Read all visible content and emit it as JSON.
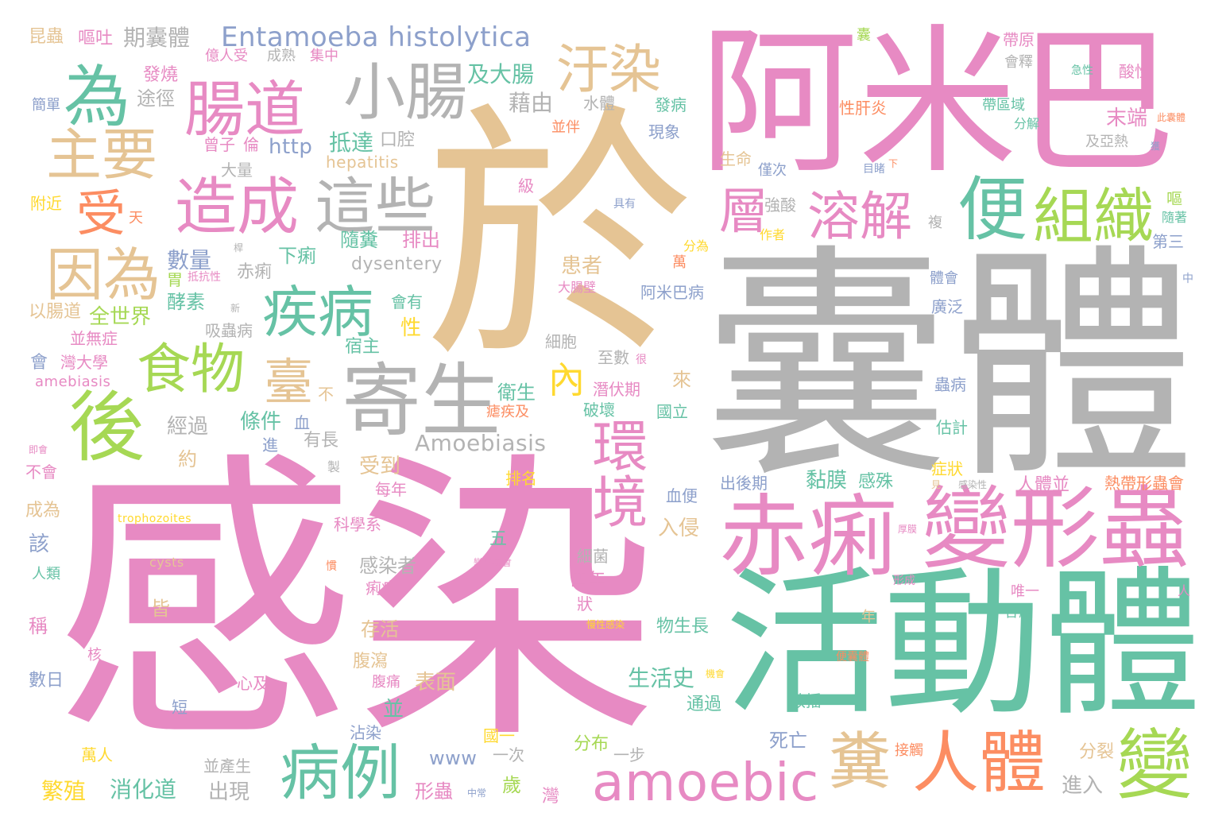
{
  "palette": {
    "pink": "#e78ac3",
    "gray": "#b3b3b3",
    "tan": "#e5c494",
    "green": "#66c2a5",
    "lime": "#a6d854",
    "orange": "#fc8d62",
    "blue": "#8da0cb",
    "yellow": "#ffd92f"
  },
  "words": [
    {
      "text": "於",
      "color": "tan"
    },
    {
      "text": "囊體",
      "color": "gray"
    },
    {
      "text": "感染",
      "color": "pink"
    },
    {
      "text": "阿米巴",
      "color": "pink"
    },
    {
      "text": "活動體",
      "color": "green"
    },
    {
      "text": "變形蟲",
      "color": "pink"
    },
    {
      "text": "赤痢",
      "color": "pink"
    },
    {
      "text": "寄生",
      "color": "gray"
    },
    {
      "text": "便",
      "color": "green"
    },
    {
      "text": "組織",
      "color": "lime"
    },
    {
      "text": "溶解",
      "color": "pink"
    },
    {
      "text": "層",
      "color": "pink"
    },
    {
      "text": "人體",
      "color": "orange"
    },
    {
      "text": "糞",
      "color": "tan"
    },
    {
      "text": "變",
      "color": "lime"
    },
    {
      "text": "amoebic",
      "color": "pink"
    },
    {
      "text": "病例",
      "color": "green"
    },
    {
      "text": "環境",
      "color": "pink"
    },
    {
      "text": "內",
      "color": "yellow"
    },
    {
      "text": "臺",
      "color": "tan"
    },
    {
      "text": "食物",
      "color": "lime"
    },
    {
      "text": "疾病",
      "color": "green"
    },
    {
      "text": "後",
      "color": "lime"
    },
    {
      "text": "因為",
      "color": "tan"
    },
    {
      "text": "受",
      "color": "orange"
    },
    {
      "text": "造成",
      "color": "pink"
    },
    {
      "text": "這些",
      "color": "gray"
    },
    {
      "text": "主要",
      "color": "tan"
    },
    {
      "text": "為",
      "color": "green"
    },
    {
      "text": "腸道",
      "color": "pink"
    },
    {
      "text": "小腸",
      "color": "gray"
    },
    {
      "text": "汙染",
      "color": "tan"
    },
    {
      "text": "Entamoeba histolytica",
      "color": "blue"
    },
    {
      "text": "期囊體",
      "color": "gray"
    },
    {
      "text": "嘔吐",
      "color": "pink"
    },
    {
      "text": "昆蟲",
      "color": "tan"
    },
    {
      "text": "億人受",
      "color": "pink"
    },
    {
      "text": "成熟",
      "color": "gray"
    },
    {
      "text": "集中",
      "color": "pink"
    },
    {
      "text": "發燒",
      "color": "pink"
    },
    {
      "text": "途徑",
      "color": "gray"
    },
    {
      "text": "簡單",
      "color": "blue"
    },
    {
      "text": "及大腸",
      "color": "green"
    },
    {
      "text": "藉由",
      "color": "gray"
    },
    {
      "text": "水體",
      "color": "gray"
    },
    {
      "text": "曾子",
      "color": "pink"
    },
    {
      "text": "倫",
      "color": "pink"
    },
    {
      "text": "http",
      "color": "blue"
    },
    {
      "text": "口腔",
      "color": "gray"
    },
    {
      "text": "抵達",
      "color": "green"
    },
    {
      "text": "hepatitis",
      "color": "tan"
    },
    {
      "text": "大量",
      "color": "gray"
    },
    {
      "text": "級",
      "color": "pink"
    },
    {
      "text": "附近",
      "color": "yellow"
    },
    {
      "text": "天",
      "color": "orange"
    },
    {
      "text": "數量",
      "color": "blue"
    },
    {
      "text": "胃",
      "color": "lime"
    },
    {
      "text": "赤痢",
      "color": "gray"
    },
    {
      "text": "下痢",
      "color": "green"
    },
    {
      "text": "dysentery",
      "color": "gray"
    },
    {
      "text": "隨糞",
      "color": "green"
    },
    {
      "text": "排出",
      "color": "pink"
    },
    {
      "text": "酵素",
      "color": "green"
    },
    {
      "text": "全世界",
      "color": "lime"
    },
    {
      "text": "以腸道",
      "color": "tan"
    },
    {
      "text": "吸蟲病",
      "color": "gray"
    },
    {
      "text": "並無症",
      "color": "pink"
    },
    {
      "text": "會有",
      "color": "green"
    },
    {
      "text": "性",
      "color": "yellow"
    },
    {
      "text": "宿主",
      "color": "green"
    },
    {
      "text": "會",
      "color": "blue"
    },
    {
      "text": "灣大學",
      "color": "pink"
    },
    {
      "text": "amebiasis",
      "color": "pink"
    },
    {
      "text": "不",
      "color": "tan"
    },
    {
      "text": "血",
      "color": "blue"
    },
    {
      "text": "條件",
      "color": "green"
    },
    {
      "text": "經過",
      "color": "gray"
    },
    {
      "text": "Amoebiasis",
      "color": "gray"
    },
    {
      "text": "衛生",
      "color": "green"
    },
    {
      "text": "瘧疾及",
      "color": "orange"
    },
    {
      "text": "約",
      "color": "tan"
    },
    {
      "text": "有長",
      "color": "gray"
    },
    {
      "text": "進",
      "color": "blue"
    },
    {
      "text": "受到",
      "color": "tan"
    },
    {
      "text": "每年",
      "color": "pink"
    },
    {
      "text": "排名",
      "color": "yellow"
    },
    {
      "text": "不會",
      "color": "pink"
    },
    {
      "text": "成為",
      "color": "tan"
    },
    {
      "text": "trophozoites",
      "color": "yellow"
    },
    {
      "text": "科學系",
      "color": "pink"
    },
    {
      "text": "該",
      "color": "blue"
    },
    {
      "text": "人類",
      "color": "green"
    },
    {
      "text": "cysts",
      "color": "tan"
    },
    {
      "text": "感染者",
      "color": "gray"
    },
    {
      "text": "痢疾",
      "color": "pink"
    },
    {
      "text": "皆",
      "color": "tan"
    },
    {
      "text": "稱",
      "color": "pink"
    },
    {
      "text": "核",
      "color": "pink"
    },
    {
      "text": "存活",
      "color": "tan"
    },
    {
      "text": "腹瀉",
      "color": "tan"
    },
    {
      "text": "數日",
      "color": "blue"
    },
    {
      "text": "心及",
      "color": "pink"
    },
    {
      "text": "腹痛",
      "color": "pink"
    },
    {
      "text": "表面",
      "color": "tan"
    },
    {
      "text": "短",
      "color": "blue"
    },
    {
      "text": "並",
      "color": "green"
    },
    {
      "text": "沾染",
      "color": "blue"
    },
    {
      "text": "萬人",
      "color": "yellow"
    },
    {
      "text": "並產生",
      "color": "gray"
    },
    {
      "text": "www",
      "color": "blue"
    },
    {
      "text": "繁殖",
      "color": "yellow"
    },
    {
      "text": "消化道",
      "color": "green"
    },
    {
      "text": "出現",
      "color": "gray"
    },
    {
      "text": "形蟲",
      "color": "pink"
    },
    {
      "text": "歲",
      "color": "lime"
    },
    {
      "text": "灣",
      "color": "pink"
    },
    {
      "text": "一次",
      "color": "gray"
    },
    {
      "text": "國一",
      "color": "yellow"
    },
    {
      "text": "分布",
      "color": "lime"
    },
    {
      "text": "一步",
      "color": "gray"
    },
    {
      "text": "死亡",
      "color": "blue"
    },
    {
      "text": "生活史",
      "color": "green"
    },
    {
      "text": "通過",
      "color": "green"
    },
    {
      "text": "散播",
      "color": "green"
    },
    {
      "text": "物生長",
      "color": "green"
    },
    {
      "text": "四年",
      "color": "pink"
    },
    {
      "text": "細菌",
      "color": "gray"
    },
    {
      "text": "狀",
      "color": "pink"
    },
    {
      "text": "五",
      "color": "green"
    },
    {
      "text": "入侵",
      "color": "tan"
    },
    {
      "text": "血便",
      "color": "blue"
    },
    {
      "text": "出後期",
      "color": "blue"
    },
    {
      "text": "黏膜",
      "color": "green"
    },
    {
      "text": "感殊",
      "color": "green"
    },
    {
      "text": "症狀",
      "color": "yellow"
    },
    {
      "text": "人體並",
      "color": "pink"
    },
    {
      "text": "熱帶形蟲會",
      "color": "orange"
    },
    {
      "text": "破壞",
      "color": "green"
    },
    {
      "text": "國立",
      "color": "green"
    },
    {
      "text": "潛伏期",
      "color": "pink"
    },
    {
      "text": "來",
      "color": "tan"
    },
    {
      "text": "至數",
      "color": "gray"
    },
    {
      "text": "細胞",
      "color": "gray"
    },
    {
      "text": "患者",
      "color": "tan"
    },
    {
      "text": "阿米巴病",
      "color": "blue"
    },
    {
      "text": "大腸壁",
      "color": "pink"
    },
    {
      "text": "萬",
      "color": "orange"
    },
    {
      "text": "分為",
      "color": "yellow"
    },
    {
      "text": "作者",
      "color": "yellow"
    },
    {
      "text": "具有",
      "color": "blue"
    },
    {
      "text": "強酸",
      "color": "gray"
    },
    {
      "text": "生命",
      "color": "tan"
    },
    {
      "text": "僅次",
      "color": "blue"
    },
    {
      "text": "現象",
      "color": "blue"
    },
    {
      "text": "並伴",
      "color": "orange"
    },
    {
      "text": "發病",
      "color": "green"
    },
    {
      "text": "性肝炎",
      "color": "orange"
    },
    {
      "text": "囊",
      "color": "lime"
    },
    {
      "text": "帶原",
      "color": "pink"
    },
    {
      "text": "會釋",
      "color": "gray"
    },
    {
      "text": "急性",
      "color": "green"
    },
    {
      "text": "酸性",
      "color": "pink"
    },
    {
      "text": "帶區域",
      "color": "green"
    },
    {
      "text": "分解",
      "color": "green"
    },
    {
      "text": "末端",
      "color": "pink"
    },
    {
      "text": "此囊體",
      "color": "orange"
    },
    {
      "text": "及亞熱",
      "color": "gray"
    },
    {
      "text": "目睹",
      "color": "blue"
    },
    {
      "text": "下",
      "color": "orange"
    },
    {
      "text": "嘔",
      "color": "lime"
    },
    {
      "text": "隨著",
      "color": "green"
    },
    {
      "text": "第三",
      "color": "blue"
    },
    {
      "text": "複",
      "color": "gray"
    },
    {
      "text": "中",
      "color": "blue"
    },
    {
      "text": "體會",
      "color": "blue"
    },
    {
      "text": "廣泛",
      "color": "blue"
    },
    {
      "text": "蟲病",
      "color": "blue"
    },
    {
      "text": "估計",
      "color": "green"
    },
    {
      "text": "見",
      "color": "tan"
    },
    {
      "text": "感染性",
      "color": "gray"
    },
    {
      "text": "厚膜",
      "color": "pink"
    },
    {
      "text": "形成",
      "color": "pink"
    },
    {
      "text": "唯一",
      "color": "pink"
    },
    {
      "text": "各處",
      "color": "green"
    },
    {
      "text": "人",
      "color": "pink"
    },
    {
      "text": "年",
      "color": "tan"
    },
    {
      "text": "便囊體",
      "color": "orange"
    },
    {
      "text": "機會",
      "color": "yellow"
    },
    {
      "text": "接觸",
      "color": "orange"
    },
    {
      "text": "分裂",
      "color": "tan"
    },
    {
      "text": "進入",
      "color": "gray"
    },
    {
      "text": "中常",
      "color": "blue"
    },
    {
      "text": "慢性感染",
      "color": "yellow"
    },
    {
      "text": "變形蟲會",
      "color": "pink"
    },
    {
      "text": "即會",
      "color": "pink"
    },
    {
      "text": "製",
      "color": "gray"
    },
    {
      "text": "新",
      "color": "gray"
    },
    {
      "text": "桿",
      "color": "gray"
    },
    {
      "text": "獲",
      "color": "blue"
    },
    {
      "text": "抵抗性",
      "color": "pink"
    },
    {
      "text": "很",
      "color": "pink"
    },
    {
      "text": "慣",
      "color": "orange"
    }
  ]
}
